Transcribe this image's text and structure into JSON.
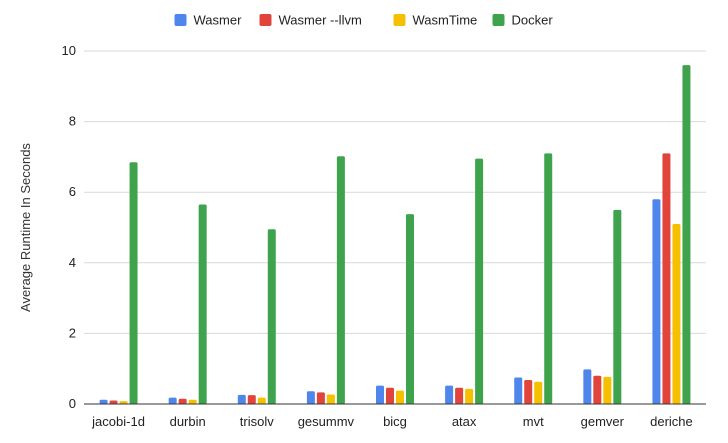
{
  "chart_data": {
    "type": "bar",
    "title": "",
    "xlabel": "",
    "ylabel": "Average Runtime In Seconds",
    "ylim": [
      0,
      10
    ],
    "yticks": [
      0,
      2,
      4,
      6,
      8,
      10
    ],
    "grid": true,
    "legend_position": "top",
    "categories": [
      "jacobi-1d",
      "durbin",
      "trisolv",
      "gesummv",
      "bicg",
      "atax",
      "mvt",
      "gemver",
      "deriche"
    ],
    "series": [
      {
        "name": "Wasmer",
        "color": "#4f86ec",
        "values": [
          0.12,
          0.18,
          0.26,
          0.36,
          0.52,
          0.52,
          0.75,
          0.98,
          5.8
        ]
      },
      {
        "name": "Wasmer --llvm",
        "color": "#e0443a",
        "values": [
          0.1,
          0.15,
          0.25,
          0.33,
          0.46,
          0.46,
          0.68,
          0.8,
          7.1
        ]
      },
      {
        "name": "WasmTime",
        "color": "#f5c000",
        "values": [
          0.08,
          0.12,
          0.18,
          0.27,
          0.38,
          0.43,
          0.63,
          0.77,
          5.1
        ]
      },
      {
        "name": "Docker",
        "color": "#3fa34d",
        "values": [
          6.85,
          5.65,
          4.95,
          7.02,
          5.38,
          6.95,
          7.1,
          5.5,
          9.6
        ]
      }
    ]
  }
}
